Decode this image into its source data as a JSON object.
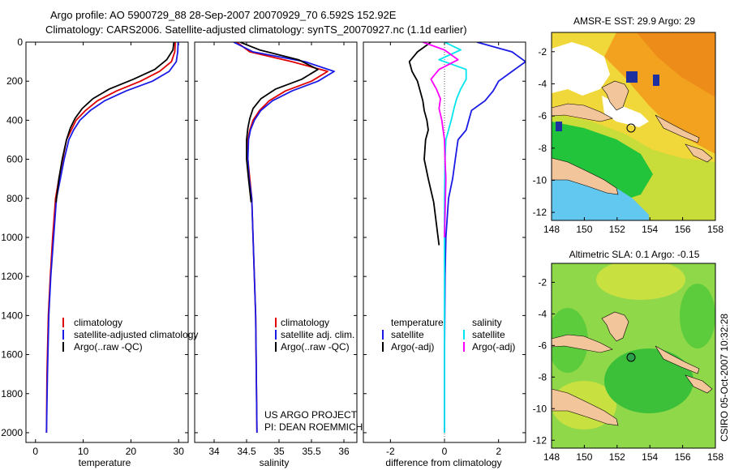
{
  "figure": {
    "title_line1": "Argo profile: AO 5900729_88 28-Sep-2007 20070929_70 6.592S 152.92E",
    "title_line2": "Climatology: CARS2006. Satellite-adjusted climatology: synTS_20070927.nc (1.1d earlier)",
    "credit_line1": "US ARGO PROJECT",
    "credit_line2": "PI: DEAN ROEMMICH",
    "timestamp": "CSIRO 05-Oct-2007 10:32:28"
  },
  "colors": {
    "climatology": "#e00000",
    "satellite": "#1a1ae6",
    "argo": "#000000",
    "sat_salinity": "#00e5ee",
    "argo_salinity": "#ff00ff",
    "land": "#f2c59a",
    "sea_blue": "#63c8f0",
    "deep_blue": "#1e2fa0"
  },
  "chart_data": [
    {
      "id": "temperature",
      "type": "line",
      "xlabel": "temperature",
      "ylabel": "",
      "xlim": [
        -2,
        32
      ],
      "ylim": [
        2050,
        0
      ],
      "xticks": [
        0,
        10,
        20,
        30
      ],
      "yticks": [
        0,
        200,
        400,
        600,
        800,
        1000,
        1200,
        1400,
        1600,
        1800,
        2000
      ],
      "series": [
        {
          "name": "climatology",
          "color_key": "climatology",
          "x": [
            29.3,
            29.2,
            28.5,
            26.0,
            22.0,
            17.0,
            13.0,
            10.5,
            8.5,
            7.5,
            6.5,
            5.7,
            4.9,
            4.2,
            3.6,
            3.1,
            2.7,
            2.4,
            2.3
          ],
          "y": [
            0,
            50,
            100,
            150,
            200,
            250,
            300,
            350,
            400,
            450,
            500,
            600,
            700,
            800,
            1000,
            1200,
            1400,
            1700,
            2000
          ]
        },
        {
          "name": "satellite-adjusted climatology",
          "color_key": "satellite",
          "x": [
            29.9,
            29.8,
            29.5,
            28.0,
            24.5,
            19.0,
            14.5,
            11.5,
            9.3,
            8.0,
            7.0,
            6.0,
            5.2,
            4.4,
            3.8,
            3.2,
            2.8,
            2.5,
            2.3
          ],
          "y": [
            0,
            50,
            100,
            150,
            200,
            250,
            300,
            350,
            400,
            450,
            500,
            600,
            700,
            800,
            1000,
            1200,
            1400,
            1700,
            2000
          ]
        },
        {
          "name": "Argo(..raw -QC)",
          "color_key": "argo",
          "x": [
            29.0,
            28.8,
            27.5,
            25.0,
            20.5,
            15.5,
            12.0,
            9.8,
            8.3,
            7.3,
            6.5,
            5.6,
            4.9,
            4.3
          ],
          "y": [
            0,
            40,
            90,
            140,
            190,
            240,
            290,
            340,
            390,
            440,
            500,
            600,
            700,
            820
          ]
        }
      ],
      "legend": [
        "climatology",
        "satellite-adjusted climatology",
        "Argo(..raw -QC)"
      ]
    },
    {
      "id": "salinity",
      "type": "line",
      "xlabel": "salinity",
      "ylabel": "",
      "xlim": [
        33.7,
        36.2
      ],
      "ylim": [
        2050,
        0
      ],
      "xticks": [
        34,
        34.5,
        35,
        35.5,
        36
      ],
      "yticks": [
        0,
        200,
        400,
        600,
        800,
        1000,
        1200,
        1400,
        1600,
        1800,
        2000
      ],
      "series": [
        {
          "name": "climatology",
          "color_key": "climatology",
          "x": [
            34.35,
            34.55,
            35.2,
            35.75,
            35.5,
            35.1,
            34.85,
            34.7,
            34.6,
            34.55,
            34.52,
            34.52,
            34.55,
            34.58,
            34.6,
            34.62,
            34.64,
            34.65,
            34.66
          ],
          "y": [
            0,
            50,
            100,
            150,
            200,
            250,
            300,
            350,
            400,
            450,
            500,
            600,
            700,
            800,
            1000,
            1200,
            1400,
            1700,
            2000
          ]
        },
        {
          "name": "satellite adj. clim.",
          "color_key": "satellite",
          "x": [
            34.3,
            34.6,
            35.4,
            35.85,
            35.6,
            35.2,
            34.9,
            34.72,
            34.62,
            34.56,
            34.53,
            34.52,
            34.54,
            34.58,
            34.6,
            34.62,
            34.64,
            34.65,
            34.66
          ],
          "y": [
            0,
            50,
            100,
            150,
            200,
            250,
            300,
            350,
            400,
            450,
            500,
            600,
            700,
            800,
            1000,
            1200,
            1400,
            1700,
            2000
          ]
        },
        {
          "name": "Argo(..raw -QC)",
          "color_key": "argo",
          "x": [
            34.4,
            34.7,
            35.3,
            35.6,
            35.35,
            34.95,
            34.72,
            34.6,
            34.55,
            34.52,
            34.5,
            34.5,
            34.53,
            34.57
          ],
          "y": [
            0,
            40,
            90,
            140,
            190,
            240,
            290,
            340,
            390,
            440,
            500,
            600,
            700,
            820
          ]
        }
      ],
      "legend": [
        "climatology",
        "satellite adj. clim.",
        "Argo(..raw -QC)"
      ]
    },
    {
      "id": "difference",
      "type": "line",
      "xlabel": "difference from climatology",
      "ylabel": "",
      "xlim": [
        -3.0,
        3.0
      ],
      "ylim": [
        2050,
        0
      ],
      "xticks": [
        -2,
        0,
        2
      ],
      "yticks": [
        0,
        200,
        400,
        600,
        800,
        1000,
        1200,
        1400,
        1600,
        1800,
        2000
      ],
      "series": [
        {
          "name": "satellite (temperature)",
          "color_key": "satellite",
          "x": [
            1.2,
            2.5,
            3.0,
            2.5,
            2.0,
            1.8,
            1.5,
            1.0,
            0.9,
            0.8,
            0.5,
            0.4,
            0.3,
            0.15,
            0.05,
            0.02,
            0.0,
            0.0
          ],
          "y": [
            0,
            50,
            100,
            150,
            200,
            250,
            300,
            350,
            400,
            450,
            500,
            600,
            700,
            800,
            1000,
            1200,
            1600,
            2000
          ]
        },
        {
          "name": "Argo(-adj) (temperature)",
          "color_key": "argo",
          "x": [
            -0.5,
            -1.0,
            -1.3,
            -1.2,
            -1.0,
            -0.9,
            -0.8,
            -0.75,
            -0.65,
            -0.6,
            -0.7,
            -0.75,
            -0.6,
            -0.4,
            -0.2
          ],
          "y": [
            0,
            50,
            100,
            150,
            200,
            250,
            300,
            350,
            400,
            450,
            500,
            600,
            700,
            820,
            1040
          ]
        },
        {
          "name": "satellite (salinity)",
          "color_key": "sat_salinity",
          "x": [
            0.0,
            0.6,
            -0.2,
            0.8,
            0.8,
            0.6,
            0.45,
            0.35,
            0.25,
            0.15,
            0.05,
            0.02,
            0.0,
            0.0
          ],
          "y": [
            0,
            40,
            90,
            140,
            190,
            240,
            290,
            340,
            400,
            450,
            500,
            600,
            800,
            2000
          ]
        },
        {
          "name": "Argo(-adj) (salinity)",
          "color_key": "argo_salinity",
          "x": [
            -0.8,
            0.0,
            0.5,
            -0.2,
            -0.5,
            -0.3,
            -0.15,
            -0.2,
            -0.1,
            -0.05,
            0.0,
            0.02,
            0.05,
            0.0
          ],
          "y": [
            0,
            40,
            90,
            140,
            190,
            240,
            290,
            340,
            400,
            450,
            500,
            600,
            700,
            1000
          ]
        }
      ],
      "legend_headers": [
        "temperature",
        "salinity"
      ],
      "legend_temperature": [
        "satellite",
        "Argo(-adj)"
      ],
      "legend_salinity": [
        "satellite",
        "Argo(-adj)"
      ]
    },
    {
      "id": "sst_map",
      "type": "heatmap",
      "title": "AMSR-E SST: 29.9 Argo: 29",
      "xlim": [
        148,
        158
      ],
      "ylim": [
        -12.5,
        -0.8
      ],
      "xticks": [
        148,
        150,
        152,
        154,
        156,
        158
      ],
      "yticks": [
        -2,
        -4,
        -6,
        -8,
        -10,
        -12
      ],
      "argo_position": {
        "lon": 152.92,
        "lat": -6.592
      }
    },
    {
      "id": "sla_map",
      "type": "heatmap",
      "title": "Altimetric SLA: 0.1 Argo: -0.15",
      "xlim": [
        148,
        158
      ],
      "ylim": [
        -12.5,
        -0.8
      ],
      "xticks": [
        148,
        150,
        152,
        154,
        156,
        158
      ],
      "yticks": [
        -2,
        -4,
        -6,
        -8,
        -10,
        -12
      ],
      "argo_position": {
        "lon": 152.92,
        "lat": -6.592
      }
    }
  ]
}
